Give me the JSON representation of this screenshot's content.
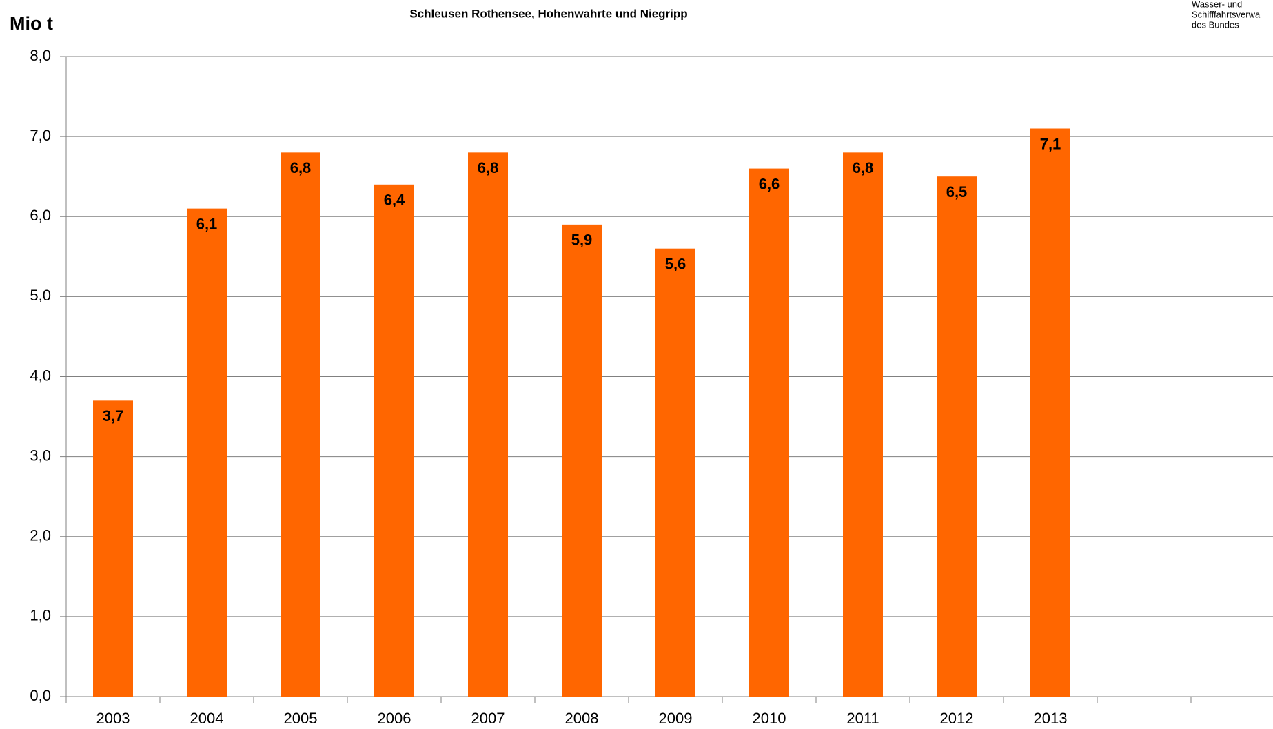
{
  "chart_data": {
    "type": "bar",
    "title": "Schleusen Rothensee, Hohenwahrte und Niegripp",
    "y_label": "Mio t",
    "logo": [
      "Wasser- und",
      "Schifffahrtsverwa",
      "des Bundes"
    ],
    "categories": [
      "2003",
      "2004",
      "2005",
      "2006",
      "2007",
      "2008",
      "2009",
      "2010",
      "2011",
      "2012",
      "2013",
      null,
      null
    ],
    "values": [
      3.7,
      6.1,
      6.8,
      6.4,
      6.8,
      5.9,
      5.6,
      6.6,
      6.8,
      6.5,
      7.1,
      null,
      null
    ],
    "value_labels": [
      "3,7",
      "6,1",
      "6,8",
      "6,4",
      "6,8",
      "5,9",
      "5,6",
      "6,6",
      "6,8",
      "6,5",
      "7,1",
      null,
      null
    ],
    "color": "#ff6600",
    "ylim": [
      0,
      8
    ],
    "yticks": [
      {
        "value": 0,
        "label": "0,0"
      },
      {
        "value": 1,
        "label": "1,0"
      },
      {
        "value": 2,
        "label": "2,0"
      },
      {
        "value": 3,
        "label": "3,0"
      },
      {
        "value": 4,
        "label": "4,0"
      },
      {
        "value": 5,
        "label": "5,0"
      },
      {
        "value": 6,
        "label": "6,0"
      },
      {
        "value": 7,
        "label": "7,0"
      },
      {
        "value": 8,
        "label": "8,0"
      }
    ],
    "grid": true
  }
}
